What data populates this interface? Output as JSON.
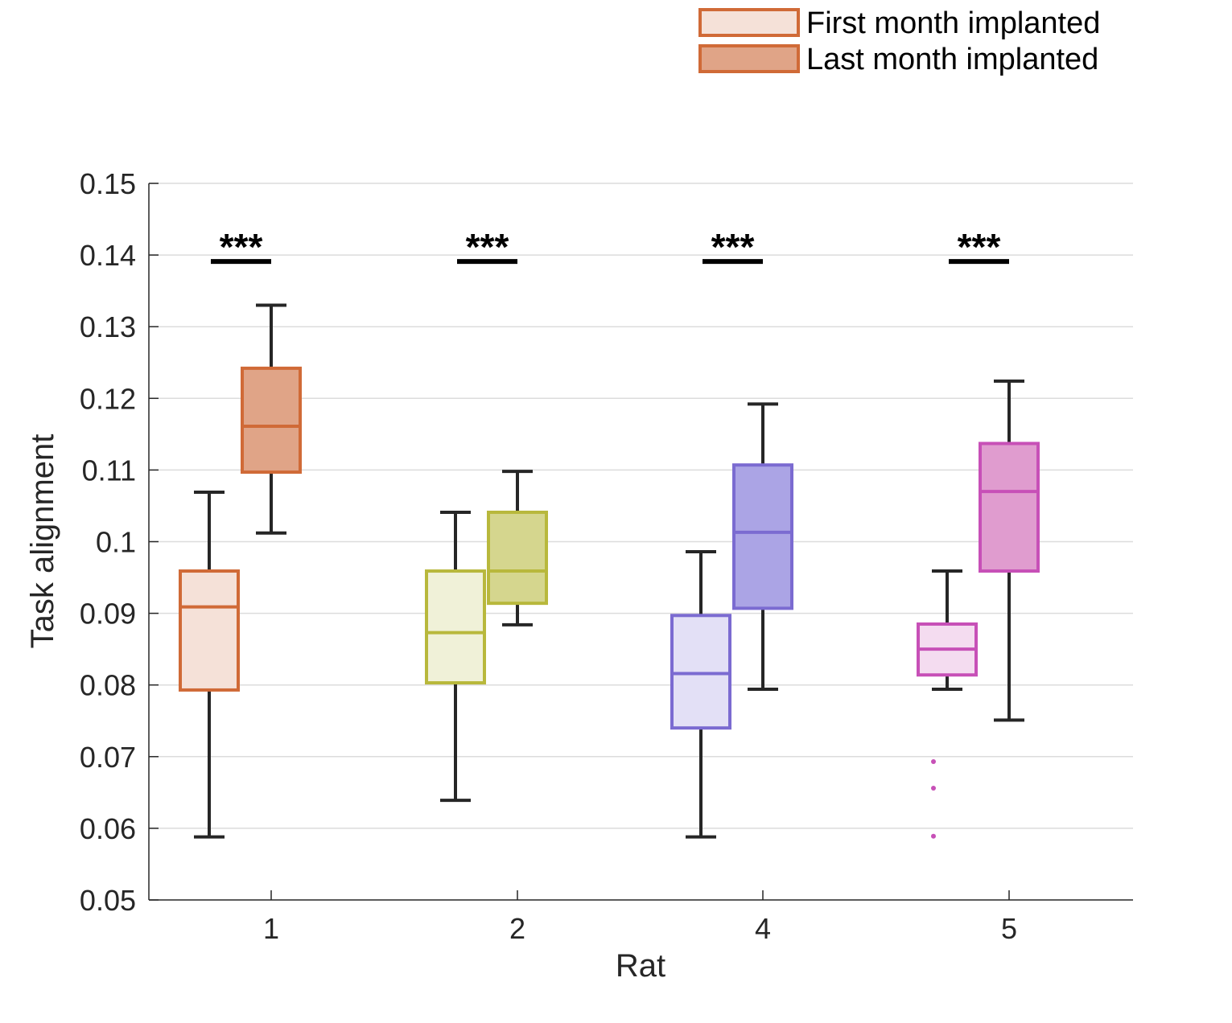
{
  "chart_data": {
    "type": "box",
    "xlabel": "Rat",
    "ylabel": "Task alignment",
    "ylim": [
      0.05,
      0.15
    ],
    "yticks": [
      0.05,
      0.06,
      0.07,
      0.08,
      0.09,
      0.1,
      0.11,
      0.12,
      0.13,
      0.14,
      0.15
    ],
    "ytick_labels": [
      "0.05",
      "0.06",
      "0.07",
      "0.08",
      "0.09",
      "0.1",
      "0.11",
      "0.12",
      "0.13",
      "0.14",
      "0.15"
    ],
    "categories": [
      "1",
      "2",
      "4",
      "5"
    ],
    "grid": true,
    "legend": {
      "placement": "top-right",
      "entries": [
        "First month implanted",
        "Last month implanted"
      ]
    },
    "series": [
      {
        "name": "First month implanted",
        "boxes": [
          {
            "category": "1",
            "whisker_low": 0.0588,
            "q1": 0.0793,
            "median": 0.0909,
            "q3": 0.0959,
            "whisker_high": 0.1069,
            "outliers": []
          },
          {
            "category": "2",
            "whisker_low": 0.0639,
            "q1": 0.0803,
            "median": 0.0873,
            "q3": 0.0959,
            "whisker_high": 0.1041,
            "outliers": []
          },
          {
            "category": "4",
            "whisker_low": 0.0588,
            "q1": 0.074,
            "median": 0.0816,
            "q3": 0.0897,
            "whisker_high": 0.0986,
            "outliers": []
          },
          {
            "category": "5",
            "whisker_low": 0.0794,
            "q1": 0.0814,
            "median": 0.085,
            "q3": 0.0885,
            "whisker_high": 0.0959,
            "outliers": [
              0.0693,
              0.0656,
              0.0589
            ]
          }
        ]
      },
      {
        "name": "Last month implanted",
        "boxes": [
          {
            "category": "1",
            "whisker_low": 0.1012,
            "q1": 0.1097,
            "median": 0.1161,
            "q3": 0.1242,
            "whisker_high": 0.133,
            "outliers": []
          },
          {
            "category": "2",
            "whisker_low": 0.0884,
            "q1": 0.0914,
            "median": 0.0959,
            "q3": 0.1041,
            "whisker_high": 0.1098,
            "outliers": []
          },
          {
            "category": "4",
            "whisker_low": 0.0794,
            "q1": 0.0907,
            "median": 0.1013,
            "q3": 0.1107,
            "whisker_high": 0.1192,
            "outliers": []
          },
          {
            "category": "5",
            "whisker_low": 0.0751,
            "q1": 0.0959,
            "median": 0.107,
            "q3": 0.1137,
            "whisker_high": 0.1224,
            "outliers": []
          }
        ]
      }
    ],
    "colors": {
      "1": {
        "edge": "#d06a37",
        "first_fill": "#f5e1d8",
        "last_fill": "#e0a487"
      },
      "2": {
        "edge": "#b8b83c",
        "first_fill": "#f0f1d8",
        "last_fill": "#d5d68e"
      },
      "4": {
        "edge": "#7b6bd1",
        "first_fill": "#e3e0f6",
        "last_fill": "#aba4e5"
      },
      "5": {
        "edge": "#c750b7",
        "first_fill": "#f4dcf0",
        "last_fill": "#e09ccf"
      }
    },
    "annotations": [
      {
        "category": "1",
        "text": "***",
        "y": 0.1391
      },
      {
        "category": "2",
        "text": "***",
        "y": 0.1391
      },
      {
        "category": "4",
        "text": "***",
        "y": 0.1391
      },
      {
        "category": "5",
        "text": "***",
        "y": 0.1391
      }
    ]
  }
}
